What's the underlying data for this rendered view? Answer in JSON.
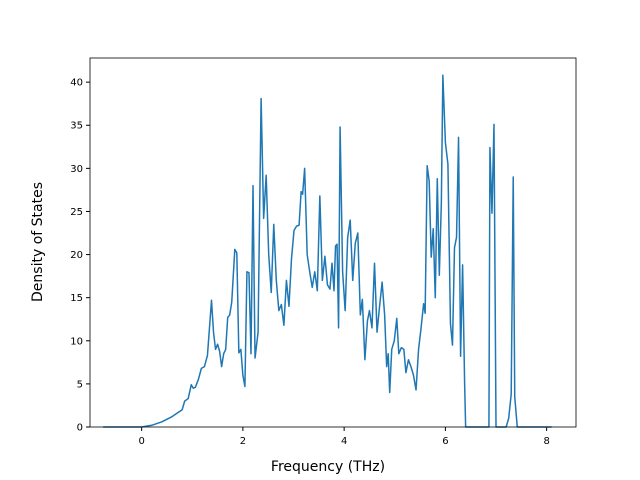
{
  "chart_data": {
    "type": "line",
    "x_label": "Frequency (THz)",
    "y_label": "Density of States",
    "xlim": [
      -1.02,
      8.58
    ],
    "ylim": [
      0,
      42.8
    ],
    "xticks": [
      0,
      2,
      4,
      6,
      8
    ],
    "yticks": [
      0,
      5,
      10,
      15,
      20,
      25,
      30,
      35,
      40
    ],
    "grid": false,
    "x": [
      -0.76,
      -0.5,
      0,
      0.2,
      0.4,
      0.6,
      0.8,
      0.85,
      0.92,
      0.98,
      1.02,
      1.06,
      1.12,
      1.18,
      1.24,
      1.3,
      1.38,
      1.42,
      1.46,
      1.5,
      1.54,
      1.58,
      1.62,
      1.66,
      1.7,
      1.74,
      1.78,
      1.84,
      1.88,
      1.92,
      1.96,
      2.0,
      2.04,
      2.08,
      2.12,
      2.16,
      2.2,
      2.24,
      2.3,
      2.36,
      2.41,
      2.46,
      2.51,
      2.56,
      2.61,
      2.66,
      2.71,
      2.76,
      2.81,
      2.86,
      2.91,
      2.96,
      3.01,
      3.06,
      3.11,
      3.15,
      3.18,
      3.22,
      3.27,
      3.32,
      3.37,
      3.42,
      3.47,
      3.52,
      3.57,
      3.62,
      3.67,
      3.72,
      3.76,
      3.8,
      3.83,
      3.86,
      3.89,
      3.92,
      3.97,
      4.02,
      4.07,
      4.12,
      4.17,
      4.22,
      4.27,
      4.32,
      4.36,
      4.41,
      4.46,
      4.5,
      4.55,
      4.6,
      4.65,
      4.7,
      4.75,
      4.8,
      4.84,
      4.87,
      4.9,
      4.94,
      4.99,
      5.04,
      5.08,
      5.13,
      5.18,
      5.22,
      5.27,
      5.32,
      5.37,
      5.42,
      5.47,
      5.52,
      5.57,
      5.6,
      5.64,
      5.68,
      5.72,
      5.76,
      5.8,
      5.84,
      5.88,
      5.92,
      5.95,
      6.0,
      6.05,
      6.1,
      6.14,
      6.18,
      6.22,
      6.26,
      6.3,
      6.34,
      6.38,
      6.4,
      6.86,
      6.88,
      6.92,
      6.96,
      7.0,
      7.2,
      7.25,
      7.3,
      7.34,
      7.37,
      7.42,
      8.1
    ],
    "series": [
      {
        "name": "DOS",
        "color": "#1f77b4",
        "values": [
          0,
          0,
          0,
          0.2,
          0.6,
          1.2,
          2.0,
          3.0,
          3.3,
          4.9,
          4.5,
          4.6,
          5.5,
          6.8,
          7.0,
          8.3,
          14.7,
          11,
          9,
          9.6,
          8.8,
          7.0,
          8.5,
          9.0,
          12.7,
          13.0,
          14.5,
          20.6,
          20.2,
          8.6,
          9.0,
          6.0,
          4.7,
          18.0,
          17.9,
          8.5,
          28.0,
          8.0,
          11.0,
          38.1,
          24.2,
          29.2,
          20,
          15.6,
          23.5,
          17,
          13.5,
          14.2,
          11.8,
          17,
          14,
          19.5,
          22.8,
          23.3,
          23.4,
          27.3,
          27,
          30,
          20,
          18,
          16.2,
          18,
          15.8,
          26.8,
          17,
          19.8,
          16.5,
          16,
          19,
          15.8,
          21,
          21.2,
          11.5,
          34.8,
          18,
          13.5,
          22,
          24,
          17,
          21.3,
          22.5,
          13,
          14.8,
          7.8,
          12.3,
          13.5,
          11.5,
          19,
          11,
          14,
          16.8,
          13,
          7,
          8.5,
          4.0,
          9,
          10,
          12.6,
          8.5,
          9.2,
          9.0,
          6.3,
          7.8,
          7.0,
          6.0,
          4.3,
          9.0,
          11.5,
          14.3,
          13.2,
          30.3,
          28.5,
          19.7,
          23,
          15,
          28.8,
          17.6,
          26,
          40.8,
          33,
          30.5,
          12,
          9.5,
          20.8,
          22,
          33.6,
          8.2,
          18.8,
          5,
          0,
          0,
          32.4,
          24.8,
          35.1,
          0,
          0,
          1,
          3.8,
          29,
          3.5,
          0,
          0
        ]
      }
    ]
  }
}
